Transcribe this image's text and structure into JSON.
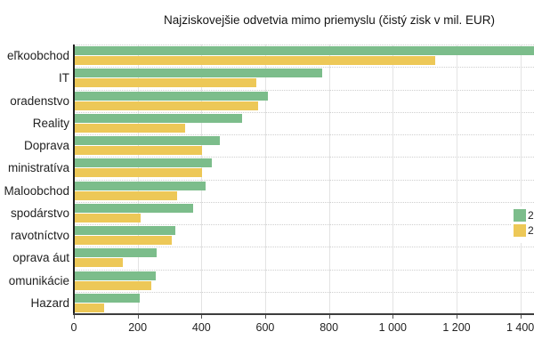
{
  "chart_data": {
    "type": "bar",
    "orientation": "horizontal",
    "grouped": true,
    "title": "Najziskovejšie odvetvia mimo priemyslu (čistý zisk v mil. EUR)",
    "categories": [
      "eľkoobchod",
      "IT",
      "oradenstvo",
      "Reality",
      "Doprava",
      "ministratíva",
      "Maloobchod",
      "spodárstvo",
      "ravotníctvo",
      "oprava áut",
      "omunikácie",
      "Hazard"
    ],
    "series": [
      {
        "name": "green-series",
        "color": "#7cbd8b",
        "legend_label_fragment": "2",
        "values": [
          1500,
          775,
          605,
          525,
          455,
          430,
          410,
          370,
          315,
          258,
          253,
          205
        ]
      },
      {
        "name": "yellow-series",
        "color": "#edc857",
        "legend_label_fragment": "2",
        "values": [
          1130,
          570,
          575,
          345,
          400,
          400,
          320,
          207,
          305,
          150,
          240,
          93
        ]
      }
    ],
    "x_tick_labels": [
      "0",
      "200",
      "400",
      "600",
      "800",
      "1 000",
      "1 200",
      "1 400"
    ],
    "x_tick_values": [
      0,
      200,
      400,
      600,
      800,
      1000,
      1200,
      1400
    ],
    "xlim": [
      0,
      1443
    ],
    "ylabel": "",
    "xlabel": "",
    "grid": {
      "vertical": "solid",
      "horizontal": "dotted"
    },
    "legend_position": "right-edge-clipped",
    "left_labels_clipped_at_image_edge": true,
    "first_green_bar_clipped_at_right_edge": true
  },
  "colors": {
    "background": "#ffffff",
    "axis": "#2b2b2b",
    "vertical_gridline": "#e3e3e3",
    "horizontal_dotted_line": "#cfcfcf",
    "text": "#1f1f1f"
  }
}
